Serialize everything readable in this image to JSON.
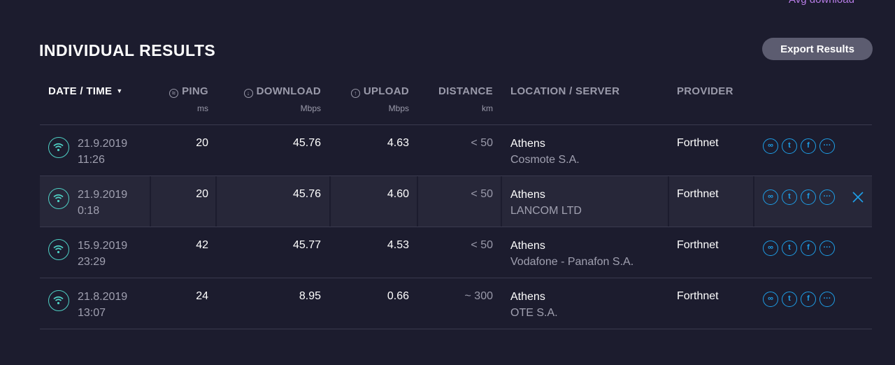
{
  "avg_link": "Avg download",
  "title": "INDIVIDUAL RESULTS",
  "export_label": "Export Results",
  "headers": {
    "datetime": "DATE / TIME",
    "ping": "PING",
    "ping_unit": "ms",
    "download": "DOWNLOAD",
    "download_unit": "Mbps",
    "upload": "UPLOAD",
    "upload_unit": "Mbps",
    "distance": "DISTANCE",
    "distance_unit": "km",
    "location": "LOCATION / SERVER",
    "provider": "PROVIDER"
  },
  "rows": [
    {
      "date": "21.9.2019",
      "time": "11:26",
      "ping": "20",
      "download": "45.76",
      "upload": "4.63",
      "distance": "< 50",
      "location": "Athens",
      "server": "Cosmote S.A.",
      "provider": "Forthnet"
    },
    {
      "date": "21.9.2019",
      "time": "0:18",
      "ping": "20",
      "download": "45.76",
      "upload": "4.60",
      "distance": "< 50",
      "location": "Athens",
      "server": "LANCOM LTD",
      "provider": "Forthnet"
    },
    {
      "date": "15.9.2019",
      "time": "23:29",
      "ping": "42",
      "download": "45.77",
      "upload": "4.53",
      "distance": "< 50",
      "location": "Athens",
      "server": "Vodafone - Panafon S.A.",
      "provider": "Forthnet"
    },
    {
      "date": "21.8.2019",
      "time": "13:07",
      "ping": "24",
      "download": "8.95",
      "upload": "0.66",
      "distance": "~ 300",
      "location": "Athens",
      "server": "OTE S.A.",
      "provider": "Forthnet"
    }
  ],
  "icons": {
    "connection": "wifi-icon",
    "actions": [
      "link-icon",
      "twitter-icon",
      "facebook-icon",
      "more-icon"
    ],
    "delete": "close-icon"
  },
  "colors": {
    "background": "#1c1c2e",
    "accent_teal": "#4fd1c5",
    "accent_blue": "#1e9fe8",
    "link_purple": "#b77de6"
  }
}
